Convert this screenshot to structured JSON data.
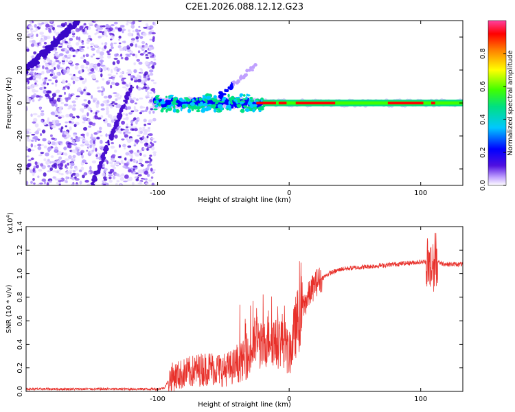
{
  "title": "C2E1.2026.088.12.12.G23",
  "colors": {
    "snr_line": "#e8302a",
    "spectro_mark": "#4a10d0",
    "background": "#ffffff"
  },
  "chart_data": [
    {
      "type": "heatmap",
      "name": "spectrogram",
      "title": "C2E1.2026.088.12.12.G23",
      "xlabel": "Height of straight line (km)",
      "ylabel": "Frequency (Hz)",
      "xlim": [
        -200,
        132
      ],
      "ylim": [
        -50,
        50
      ],
      "x_ticks": [
        -100,
        0,
        100
      ],
      "x_tick_labels": [
        "-100",
        "0",
        "100"
      ],
      "y_ticks": [
        -40,
        -20,
        0,
        20,
        40
      ],
      "y_tick_labels": [
        "-40",
        "-20",
        "0",
        "20",
        "40"
      ],
      "noise_region_x": [
        -200,
        -102
      ],
      "tone_track_frequency_hz": 0,
      "colorbar": {
        "label": "Normalized spectral amplitude",
        "range": [
          0,
          1
        ],
        "ticks": [
          0.0,
          0.2,
          0.4,
          0.6,
          0.8
        ],
        "tick_labels": [
          "0.0",
          "0.2",
          "0.4",
          "0.6",
          "0.8"
        ],
        "colormap": [
          "#ffffff",
          "#c0a0ff",
          "#5010e0",
          "#0000ff",
          "#00c8ff",
          "#00e080",
          "#40ff00",
          "#ffff00",
          "#ff8000",
          "#ff0000",
          "#ff40a0"
        ]
      }
    },
    {
      "type": "line",
      "name": "snr",
      "xlabel": "Height of straight line (km)",
      "ylabel": "SNR (10 * v/v)",
      "scale_label": "(x10",
      "scale_exponent": "4",
      "xlim": [
        -200,
        132
      ],
      "ylim": [
        0,
        1.4
      ],
      "x_ticks": [
        -100,
        0,
        100
      ],
      "x_tick_labels": [
        "-100",
        "0",
        "100"
      ],
      "y_ticks": [
        0.0,
        0.2,
        0.4,
        0.6,
        0.8,
        1.0,
        1.2,
        1.4
      ],
      "y_tick_labels": [
        "0.0",
        "0.2",
        "0.4",
        "0.6",
        "0.8",
        "1.0",
        "1.2",
        "1.4"
      ],
      "series": [
        {
          "name": "SNR",
          "x": [
            -200,
            -150,
            -100,
            -95,
            -90,
            -80,
            -70,
            -60,
            -50,
            -40,
            -30,
            -25,
            -20,
            -15,
            -10,
            -5,
            0,
            5,
            10,
            15,
            20,
            30,
            40,
            50,
            60,
            70,
            80,
            90,
            100,
            105,
            108,
            110,
            112,
            115,
            120,
            132
          ],
          "y": [
            0.02,
            0.02,
            0.02,
            0.03,
            0.12,
            0.15,
            0.18,
            0.2,
            0.18,
            0.22,
            0.3,
            0.45,
            0.35,
            0.5,
            0.4,
            0.45,
            0.3,
            0.55,
            0.7,
            0.82,
            0.92,
            1.0,
            1.04,
            1.05,
            1.06,
            1.07,
            1.08,
            1.09,
            1.1,
            1.1,
            1.05,
            1.1,
            1.12,
            1.09,
            1.08,
            1.08
          ]
        }
      ]
    }
  ]
}
